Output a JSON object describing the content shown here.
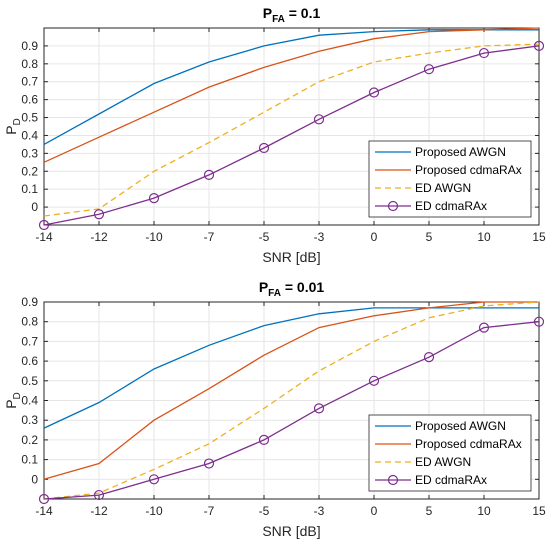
{
  "chart_data": [
    {
      "type": "line",
      "title_main": "P",
      "title_sub": "FA",
      "title_rest": " = 0.1",
      "xlabel": "SNR [dB]",
      "ylabel_main": "P",
      "ylabel_sub": "D",
      "x": [
        "-14",
        "-12",
        "-10",
        "-7",
        "-5",
        "-3",
        "0",
        "5",
        "10",
        "15"
      ],
      "y_ticks": [
        "0",
        "0.1",
        "0.2",
        "0.3",
        "0.4",
        "0.5",
        "0.6",
        "0.7",
        "0.8",
        "0.9"
      ],
      "ylim": [
        -0.1,
        1.0
      ],
      "grid": true,
      "legend_position": "bottom-right",
      "series": [
        {
          "name": "Proposed AWGN",
          "color": "#0072BD",
          "dash": "solid",
          "marker": "none",
          "values": [
            0.35,
            0.52,
            0.69,
            0.81,
            0.9,
            0.96,
            0.98,
            0.99,
            0.99,
            0.99
          ]
        },
        {
          "name": "Proposed cdmaRAx",
          "color": "#D95319",
          "dash": "solid",
          "marker": "none",
          "values": [
            0.25,
            0.39,
            0.53,
            0.67,
            0.78,
            0.87,
            0.94,
            0.98,
            0.99,
            1.0
          ]
        },
        {
          "name": "ED AWGN",
          "color": "#EDB120",
          "dash": "dashed",
          "marker": "none",
          "values": [
            -0.05,
            -0.01,
            0.2,
            0.36,
            0.53,
            0.7,
            0.81,
            0.86,
            0.9,
            0.91
          ]
        },
        {
          "name": "ED cdmaRAx",
          "color": "#7E2F8E",
          "dash": "solid",
          "marker": "circle",
          "values": [
            -0.1,
            -0.04,
            0.05,
            0.18,
            0.33,
            0.49,
            0.64,
            0.77,
            0.86,
            0.9
          ]
        }
      ]
    },
    {
      "type": "line",
      "title_main": "P",
      "title_sub": "FA",
      "title_rest": " = 0.01",
      "xlabel": "SNR [dB]",
      "ylabel_main": "P",
      "ylabel_sub": "D",
      "x": [
        "-14",
        "-12",
        "-10",
        "-7",
        "-5",
        "-3",
        "0",
        "5",
        "10",
        "15"
      ],
      "y_ticks": [
        "0",
        "0.1",
        "0.2",
        "0.3",
        "0.4",
        "0.5",
        "0.6",
        "0.7",
        "0.8",
        "0.9"
      ],
      "ylim": [
        -0.1,
        0.9
      ],
      "grid": true,
      "legend_position": "bottom-right",
      "series": [
        {
          "name": "Proposed AWGN",
          "color": "#0072BD",
          "dash": "solid",
          "marker": "none",
          "values": [
            0.26,
            0.39,
            0.56,
            0.68,
            0.78,
            0.84,
            0.87,
            0.87,
            0.87,
            0.87
          ]
        },
        {
          "name": "Proposed cdmaRAx",
          "color": "#D95319",
          "dash": "solid",
          "marker": "none",
          "values": [
            0.0,
            0.08,
            0.3,
            0.46,
            0.63,
            0.77,
            0.83,
            0.87,
            0.9,
            0.9
          ]
        },
        {
          "name": "ED AWGN",
          "color": "#EDB120",
          "dash": "dashed",
          "marker": "none",
          "values": [
            -0.1,
            -0.07,
            0.05,
            0.18,
            0.36,
            0.55,
            0.7,
            0.82,
            0.88,
            0.9
          ]
        },
        {
          "name": "ED cdmaRAx",
          "color": "#7E2F8E",
          "dash": "solid",
          "marker": "circle",
          "values": [
            -0.1,
            -0.08,
            0.0,
            0.08,
            0.2,
            0.36,
            0.5,
            0.62,
            0.77,
            0.8
          ]
        }
      ]
    }
  ]
}
